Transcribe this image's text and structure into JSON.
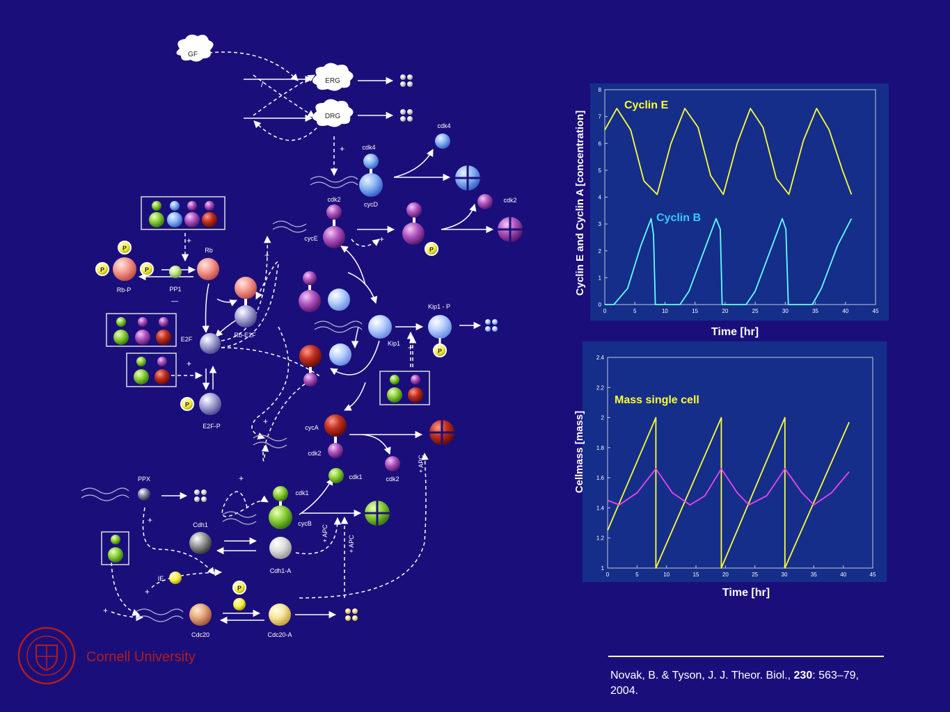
{
  "network": {
    "labels": {
      "gf": "GF",
      "erg": "ERG",
      "drg": "DRG",
      "cdk4_top": "cdk4",
      "cdk4_free": "cdk4",
      "cycD": "cycD",
      "cdk2_e": "cdk2",
      "cycE": "cycE",
      "cdk2_free1": "cdk2",
      "rb": "Rb",
      "rbp": "Rb-P",
      "pp1": "PP1",
      "rbe2f": "Rb-E2F",
      "e2f": "E2F",
      "e2fp": "E2F-P",
      "kip1": "Kip1",
      "kip1p": "Kip1 - P",
      "cycA": "cycA",
      "cdk2_a": "cdk2",
      "cdk2_free2": "cdk2",
      "cdk1_free": "cdk1",
      "cdk1_b": "cdk1",
      "cycB": "cycB",
      "ppx": "PPX",
      "cdh1": "Cdh1",
      "cdh1a": "Cdh1-A",
      "ie": "IE",
      "cdc20": "Cdc20",
      "cdc20a": "Cdc20-A",
      "apc1": "+ APC",
      "apc2": "+ APC",
      "apc3": "+ APC",
      "p": "P",
      "plus": "+",
      "minus": "—",
      "inhib": "/"
    }
  },
  "plot1": {
    "series_labels": {
      "e": "Cyclin E",
      "b": "Cyclin B"
    },
    "ylabel": "Cyclin E and Cyclin A [concentration]",
    "xlabel": "Time [hr]",
    "xticks": [
      "0",
      "5",
      "10",
      "15",
      "20",
      "25",
      "30",
      "35",
      "40",
      "45"
    ],
    "yticks": [
      "0",
      "1",
      "2",
      "3",
      "4",
      "5",
      "6",
      "7",
      "8"
    ]
  },
  "plot2": {
    "series_label": "Mass single cell",
    "ylabel": "Cellmass [mass]",
    "xlabel": "Time [hr]",
    "xticks": [
      "0",
      "5",
      "10",
      "15",
      "20",
      "25",
      "30",
      "35",
      "40",
      "45"
    ],
    "yticks": [
      "1",
      "1.2",
      "1.4",
      "1.6",
      "1.8",
      "2",
      "2.2",
      "2.4"
    ]
  },
  "chart_data": [
    {
      "type": "line",
      "xlabel": "Time [hr]",
      "ylabel": "Cyclin E and Cyclin A [concentration]",
      "xlim": [
        0,
        45
      ],
      "ylim": [
        0,
        8
      ],
      "series": [
        {
          "name": "Cyclin E",
          "color": "#ffff33",
          "x": [
            0,
            2,
            4.3,
            6.5,
            8.7,
            11,
            13.3,
            15.5,
            17.6,
            19.7,
            22,
            24.2,
            26.3,
            28.5,
            30.6,
            33,
            35.2,
            37.3,
            39.5,
            41
          ],
          "y": [
            6.5,
            7.3,
            6.5,
            4.6,
            4.1,
            6.0,
            7.3,
            6.6,
            4.8,
            4.1,
            6.0,
            7.3,
            6.6,
            4.7,
            4.1,
            6.1,
            7.3,
            6.5,
            5.0,
            4.1
          ]
        },
        {
          "name": "Cyclin B",
          "color": "#66ffff",
          "x": [
            0,
            1.5,
            3.8,
            6,
            7.7,
            8.1,
            8.4,
            12.5,
            14,
            16.5,
            18.5,
            19.2,
            19.5,
            23.5,
            25,
            27.5,
            29.5,
            30.1,
            30.5,
            34.5,
            36,
            38.7,
            41
          ],
          "y": [
            0,
            0,
            0.6,
            2.2,
            3.2,
            2.6,
            0,
            0,
            0.5,
            2.0,
            3.2,
            2.8,
            0,
            0,
            0.5,
            2.0,
            3.2,
            2.8,
            0,
            0,
            0.6,
            2.2,
            3.2
          ]
        }
      ]
    },
    {
      "type": "line",
      "xlabel": "Time [hr]",
      "ylabel": "Cellmass [mass]",
      "xlim": [
        0,
        45
      ],
      "ylim": [
        1,
        2.4
      ],
      "series": [
        {
          "name": "Mass single cell",
          "color": "#ffff33",
          "x": [
            0,
            8.2,
            8.2,
            19.3,
            19.3,
            30.1,
            30.1,
            41
          ],
          "y": [
            1.25,
            2.0,
            1.0,
            2.0,
            1.0,
            2.0,
            1.0,
            1.97
          ]
        },
        {
          "color": "#ee44ee",
          "x": [
            0,
            2,
            5,
            8.2,
            11,
            14,
            16.5,
            19.3,
            22,
            24,
            27,
            30.1,
            33,
            35,
            38,
            41
          ],
          "y": [
            1.45,
            1.42,
            1.5,
            1.66,
            1.5,
            1.42,
            1.48,
            1.66,
            1.5,
            1.42,
            1.48,
            1.66,
            1.5,
            1.42,
            1.5,
            1.64
          ]
        }
      ]
    }
  ],
  "citation": {
    "authors": "Novak, B. & Tyson, J. J. Theor. Biol., ",
    "volume": "230",
    "pages": ": 563–79,",
    "year": "2004."
  },
  "logo": {
    "name": "Cornell University"
  },
  "colors": {
    "background": "#1a0f7a",
    "arrow": "#ffffff",
    "cornell_red": "#b31b1b"
  }
}
